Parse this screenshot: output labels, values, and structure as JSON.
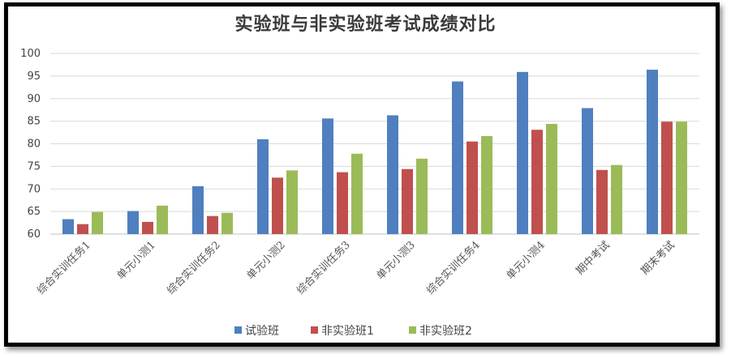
{
  "chart_data": {
    "type": "bar",
    "title": "实验班与非实验班考试成绩对比",
    "categories": [
      "综合实训任务1",
      "单元小测1",
      "综合实训任务2",
      "单元小测2",
      "综合实训任务3",
      "单元小测3",
      "综合实训任务4",
      "单元小测4",
      "期中考试",
      "期末考试"
    ],
    "series": [
      {
        "name": "试验班",
        "color": "#4f7fbf",
        "values": [
          63.3,
          65.1,
          70.6,
          81.0,
          85.6,
          86.3,
          93.8,
          95.9,
          87.9,
          96.4
        ]
      },
      {
        "name": "非实验班1",
        "color": "#c0504d",
        "values": [
          62.2,
          62.7,
          64.0,
          72.5,
          73.7,
          74.4,
          80.5,
          83.1,
          74.2,
          84.9
        ]
      },
      {
        "name": "非实验班2",
        "color": "#9bbb59",
        "values": [
          64.9,
          66.3,
          64.7,
          74.1,
          77.8,
          76.7,
          81.7,
          84.4,
          75.3,
          84.9
        ]
      }
    ],
    "yticks": [
      "60",
      "65",
      "70",
      "75",
      "80",
      "85",
      "90",
      "95",
      "100"
    ],
    "ylim": [
      60,
      100
    ],
    "grid": true,
    "legend_position": "bottom"
  }
}
